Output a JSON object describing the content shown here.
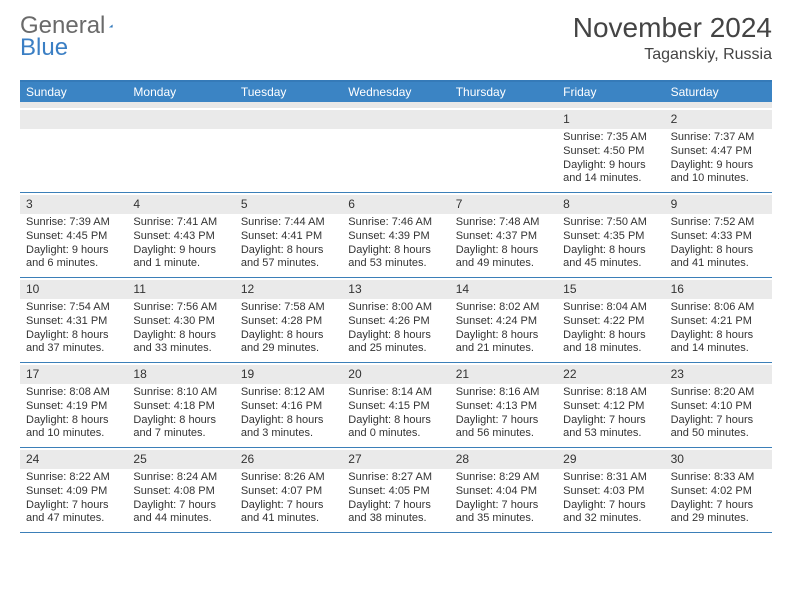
{
  "logo": {
    "text1": "General",
    "text2": "Blue"
  },
  "title": {
    "month": "November 2024",
    "location": "Taganskiy, Russia"
  },
  "colors": {
    "header_bar": "#3b84c4",
    "rule": "#3b7fb8",
    "daynum_bg": "#eaeaea"
  },
  "daysOfWeek": [
    "Sunday",
    "Monday",
    "Tuesday",
    "Wednesday",
    "Thursday",
    "Friday",
    "Saturday"
  ],
  "weeks": [
    [
      {
        "n": "",
        "sr": "",
        "ss": "",
        "dl1": "",
        "dl2": ""
      },
      {
        "n": "",
        "sr": "",
        "ss": "",
        "dl1": "",
        "dl2": ""
      },
      {
        "n": "",
        "sr": "",
        "ss": "",
        "dl1": "",
        "dl2": ""
      },
      {
        "n": "",
        "sr": "",
        "ss": "",
        "dl1": "",
        "dl2": ""
      },
      {
        "n": "",
        "sr": "",
        "ss": "",
        "dl1": "",
        "dl2": ""
      },
      {
        "n": "1",
        "sr": "Sunrise: 7:35 AM",
        "ss": "Sunset: 4:50 PM",
        "dl1": "Daylight: 9 hours",
        "dl2": "and 14 minutes."
      },
      {
        "n": "2",
        "sr": "Sunrise: 7:37 AM",
        "ss": "Sunset: 4:47 PM",
        "dl1": "Daylight: 9 hours",
        "dl2": "and 10 minutes."
      }
    ],
    [
      {
        "n": "3",
        "sr": "Sunrise: 7:39 AM",
        "ss": "Sunset: 4:45 PM",
        "dl1": "Daylight: 9 hours",
        "dl2": "and 6 minutes."
      },
      {
        "n": "4",
        "sr": "Sunrise: 7:41 AM",
        "ss": "Sunset: 4:43 PM",
        "dl1": "Daylight: 9 hours",
        "dl2": "and 1 minute."
      },
      {
        "n": "5",
        "sr": "Sunrise: 7:44 AM",
        "ss": "Sunset: 4:41 PM",
        "dl1": "Daylight: 8 hours",
        "dl2": "and 57 minutes."
      },
      {
        "n": "6",
        "sr": "Sunrise: 7:46 AM",
        "ss": "Sunset: 4:39 PM",
        "dl1": "Daylight: 8 hours",
        "dl2": "and 53 minutes."
      },
      {
        "n": "7",
        "sr": "Sunrise: 7:48 AM",
        "ss": "Sunset: 4:37 PM",
        "dl1": "Daylight: 8 hours",
        "dl2": "and 49 minutes."
      },
      {
        "n": "8",
        "sr": "Sunrise: 7:50 AM",
        "ss": "Sunset: 4:35 PM",
        "dl1": "Daylight: 8 hours",
        "dl2": "and 45 minutes."
      },
      {
        "n": "9",
        "sr": "Sunrise: 7:52 AM",
        "ss": "Sunset: 4:33 PM",
        "dl1": "Daylight: 8 hours",
        "dl2": "and 41 minutes."
      }
    ],
    [
      {
        "n": "10",
        "sr": "Sunrise: 7:54 AM",
        "ss": "Sunset: 4:31 PM",
        "dl1": "Daylight: 8 hours",
        "dl2": "and 37 minutes."
      },
      {
        "n": "11",
        "sr": "Sunrise: 7:56 AM",
        "ss": "Sunset: 4:30 PM",
        "dl1": "Daylight: 8 hours",
        "dl2": "and 33 minutes."
      },
      {
        "n": "12",
        "sr": "Sunrise: 7:58 AM",
        "ss": "Sunset: 4:28 PM",
        "dl1": "Daylight: 8 hours",
        "dl2": "and 29 minutes."
      },
      {
        "n": "13",
        "sr": "Sunrise: 8:00 AM",
        "ss": "Sunset: 4:26 PM",
        "dl1": "Daylight: 8 hours",
        "dl2": "and 25 minutes."
      },
      {
        "n": "14",
        "sr": "Sunrise: 8:02 AM",
        "ss": "Sunset: 4:24 PM",
        "dl1": "Daylight: 8 hours",
        "dl2": "and 21 minutes."
      },
      {
        "n": "15",
        "sr": "Sunrise: 8:04 AM",
        "ss": "Sunset: 4:22 PM",
        "dl1": "Daylight: 8 hours",
        "dl2": "and 18 minutes."
      },
      {
        "n": "16",
        "sr": "Sunrise: 8:06 AM",
        "ss": "Sunset: 4:21 PM",
        "dl1": "Daylight: 8 hours",
        "dl2": "and 14 minutes."
      }
    ],
    [
      {
        "n": "17",
        "sr": "Sunrise: 8:08 AM",
        "ss": "Sunset: 4:19 PM",
        "dl1": "Daylight: 8 hours",
        "dl2": "and 10 minutes."
      },
      {
        "n": "18",
        "sr": "Sunrise: 8:10 AM",
        "ss": "Sunset: 4:18 PM",
        "dl1": "Daylight: 8 hours",
        "dl2": "and 7 minutes."
      },
      {
        "n": "19",
        "sr": "Sunrise: 8:12 AM",
        "ss": "Sunset: 4:16 PM",
        "dl1": "Daylight: 8 hours",
        "dl2": "and 3 minutes."
      },
      {
        "n": "20",
        "sr": "Sunrise: 8:14 AM",
        "ss": "Sunset: 4:15 PM",
        "dl1": "Daylight: 8 hours",
        "dl2": "and 0 minutes."
      },
      {
        "n": "21",
        "sr": "Sunrise: 8:16 AM",
        "ss": "Sunset: 4:13 PM",
        "dl1": "Daylight: 7 hours",
        "dl2": "and 56 minutes."
      },
      {
        "n": "22",
        "sr": "Sunrise: 8:18 AM",
        "ss": "Sunset: 4:12 PM",
        "dl1": "Daylight: 7 hours",
        "dl2": "and 53 minutes."
      },
      {
        "n": "23",
        "sr": "Sunrise: 8:20 AM",
        "ss": "Sunset: 4:10 PM",
        "dl1": "Daylight: 7 hours",
        "dl2": "and 50 minutes."
      }
    ],
    [
      {
        "n": "24",
        "sr": "Sunrise: 8:22 AM",
        "ss": "Sunset: 4:09 PM",
        "dl1": "Daylight: 7 hours",
        "dl2": "and 47 minutes."
      },
      {
        "n": "25",
        "sr": "Sunrise: 8:24 AM",
        "ss": "Sunset: 4:08 PM",
        "dl1": "Daylight: 7 hours",
        "dl2": "and 44 minutes."
      },
      {
        "n": "26",
        "sr": "Sunrise: 8:26 AM",
        "ss": "Sunset: 4:07 PM",
        "dl1": "Daylight: 7 hours",
        "dl2": "and 41 minutes."
      },
      {
        "n": "27",
        "sr": "Sunrise: 8:27 AM",
        "ss": "Sunset: 4:05 PM",
        "dl1": "Daylight: 7 hours",
        "dl2": "and 38 minutes."
      },
      {
        "n": "28",
        "sr": "Sunrise: 8:29 AM",
        "ss": "Sunset: 4:04 PM",
        "dl1": "Daylight: 7 hours",
        "dl2": "and 35 minutes."
      },
      {
        "n": "29",
        "sr": "Sunrise: 8:31 AM",
        "ss": "Sunset: 4:03 PM",
        "dl1": "Daylight: 7 hours",
        "dl2": "and 32 minutes."
      },
      {
        "n": "30",
        "sr": "Sunrise: 8:33 AM",
        "ss": "Sunset: 4:02 PM",
        "dl1": "Daylight: 7 hours",
        "dl2": "and 29 minutes."
      }
    ]
  ]
}
